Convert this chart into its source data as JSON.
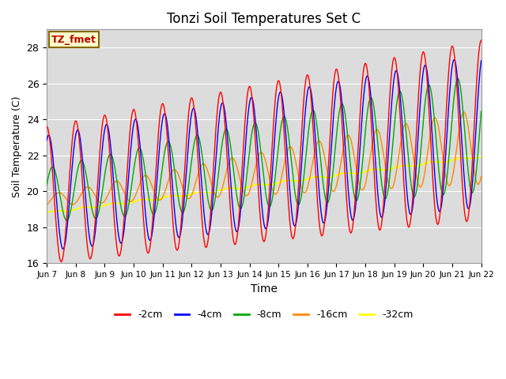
{
  "title": "Tonzi Soil Temperatures Set C",
  "xlabel": "Time",
  "ylabel": "Soil Temperature (C)",
  "ylim": [
    16,
    29
  ],
  "xlim": [
    0,
    15
  ],
  "background_color": "#dcdcdc",
  "colors": {
    "-2cm": "#ff0000",
    "-4cm": "#0000ff",
    "-8cm": "#00aa00",
    "-16cm": "#ff8800",
    "-32cm": "#ffff00"
  },
  "legend_labels": [
    "-2cm",
    "-4cm",
    "-8cm",
    "-16cm",
    "-32cm"
  ],
  "annotation_text": "TZ_fmet",
  "xtick_labels": [
    "Jun 7",
    "Jun 8",
    "Jun 9",
    "Jun 10",
    "Jun 11",
    "Jun 12",
    "Jun 13",
    "Jun 14",
    "Jun 15",
    "Jun 16",
    "Jun 17",
    "Jun 18",
    "Jun 19",
    "Jun 20",
    "Jun 21",
    "Jun 22"
  ],
  "num_days": 15,
  "points_per_day": 48,
  "yticks": [
    16,
    18,
    20,
    22,
    24,
    26,
    28
  ]
}
